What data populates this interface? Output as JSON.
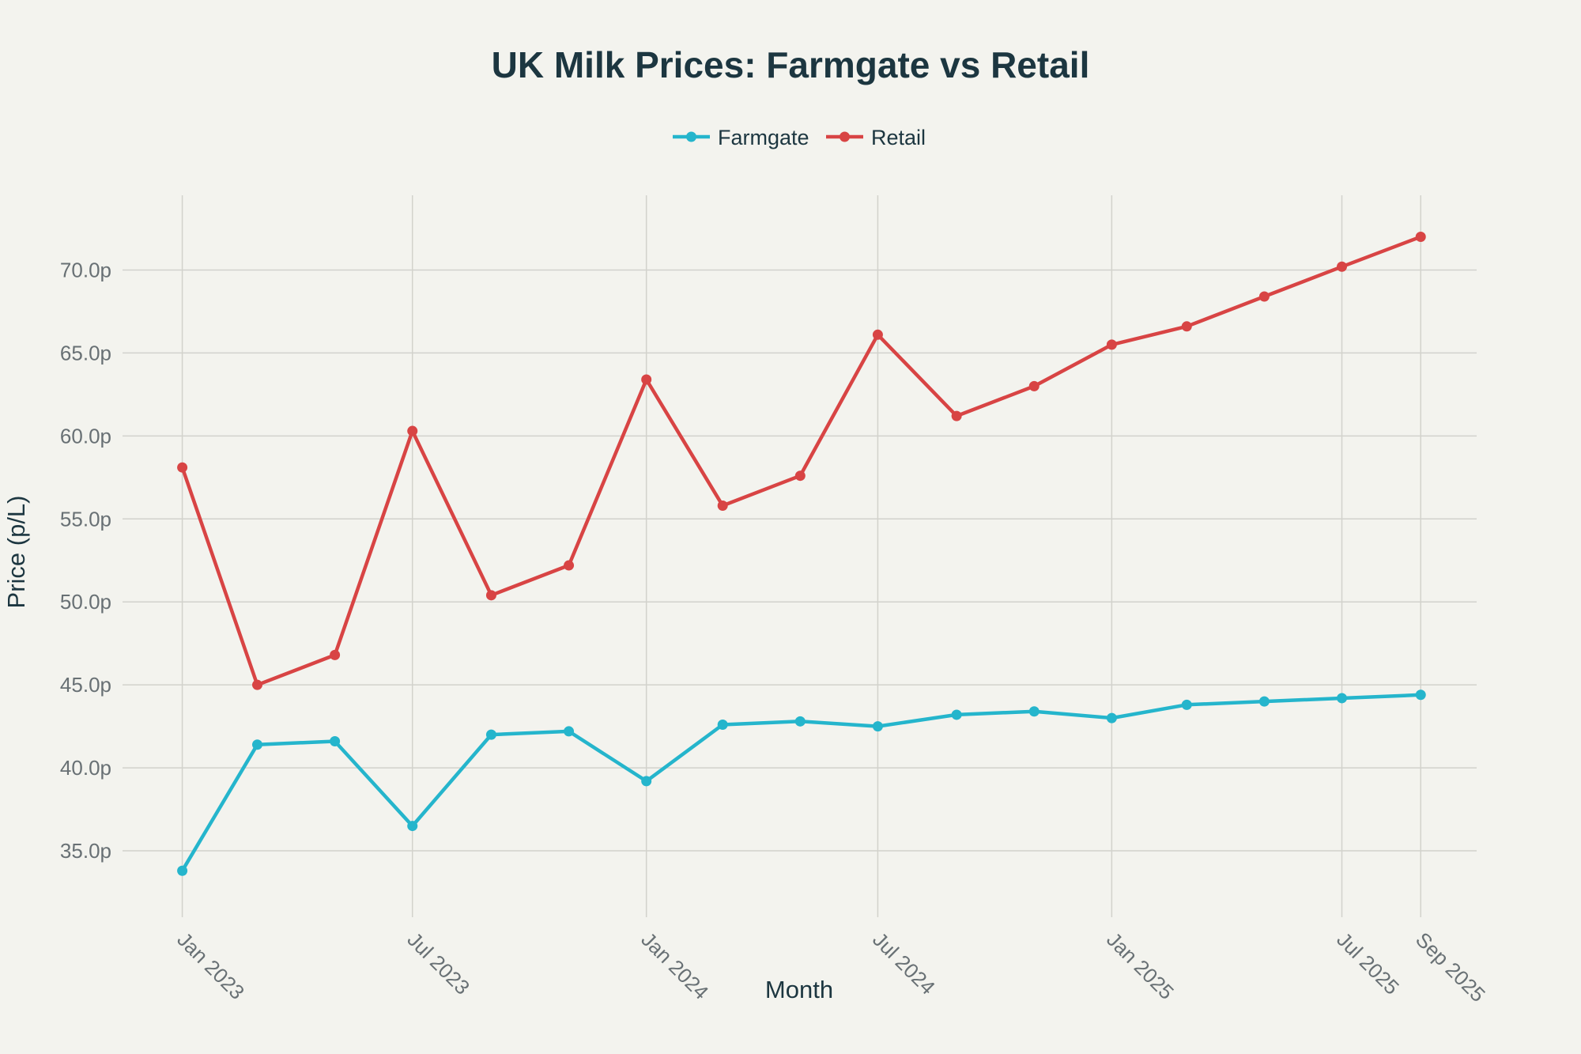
{
  "chart_data": {
    "type": "line",
    "title": "UK Milk Prices: Farmgate vs Retail",
    "xlabel": "Month",
    "ylabel": "Price (p/L)",
    "ylim": [
      31,
      74.5
    ],
    "xlim": [
      "2022-11-15",
      "2025-10-15"
    ],
    "x_tick_labels": [
      "Jan 2023",
      "Jul 2023",
      "Jan 2024",
      "Jul 2024",
      "Jan 2025",
      "Jul 2025",
      "Sep 2025"
    ],
    "x_tick_dates": [
      "2023-01-01",
      "2023-07-01",
      "2024-01-01",
      "2024-07-01",
      "2025-01-01",
      "2025-07-01",
      "2025-09-01"
    ],
    "y_tick_labels": [
      "35.0p",
      "40.0p",
      "45.0p",
      "50.0p",
      "55.0p",
      "60.0p",
      "65.0p",
      "70.0p"
    ],
    "y_ticks": [
      35,
      40,
      45,
      50,
      55,
      60,
      65,
      70
    ],
    "x": [
      "2023-01-01",
      "2023-03-01",
      "2023-05-01",
      "2023-07-01",
      "2023-09-01",
      "2023-11-01",
      "2024-01-01",
      "2024-03-01",
      "2024-05-01",
      "2024-07-01",
      "2024-09-01",
      "2024-11-01",
      "2025-01-01",
      "2025-03-01",
      "2025-05-01",
      "2025-07-01",
      "2025-09-01"
    ],
    "series": [
      {
        "name": "Farmgate",
        "color": "#25b5cc",
        "values": [
          33.8,
          41.4,
          41.6,
          36.5,
          42.0,
          42.2,
          39.2,
          42.6,
          42.8,
          42.5,
          43.2,
          43.4,
          43.0,
          43.8,
          44.0,
          44.2,
          44.4
        ]
      },
      {
        "name": "Retail",
        "color": "#d84444",
        "values": [
          58.1,
          45.0,
          46.8,
          60.3,
          50.4,
          52.2,
          63.4,
          55.8,
          57.6,
          66.1,
          61.2,
          63.0,
          65.5,
          66.6,
          68.4,
          70.2,
          72.0
        ]
      }
    ],
    "legend_position": "top-center",
    "grid": true
  }
}
